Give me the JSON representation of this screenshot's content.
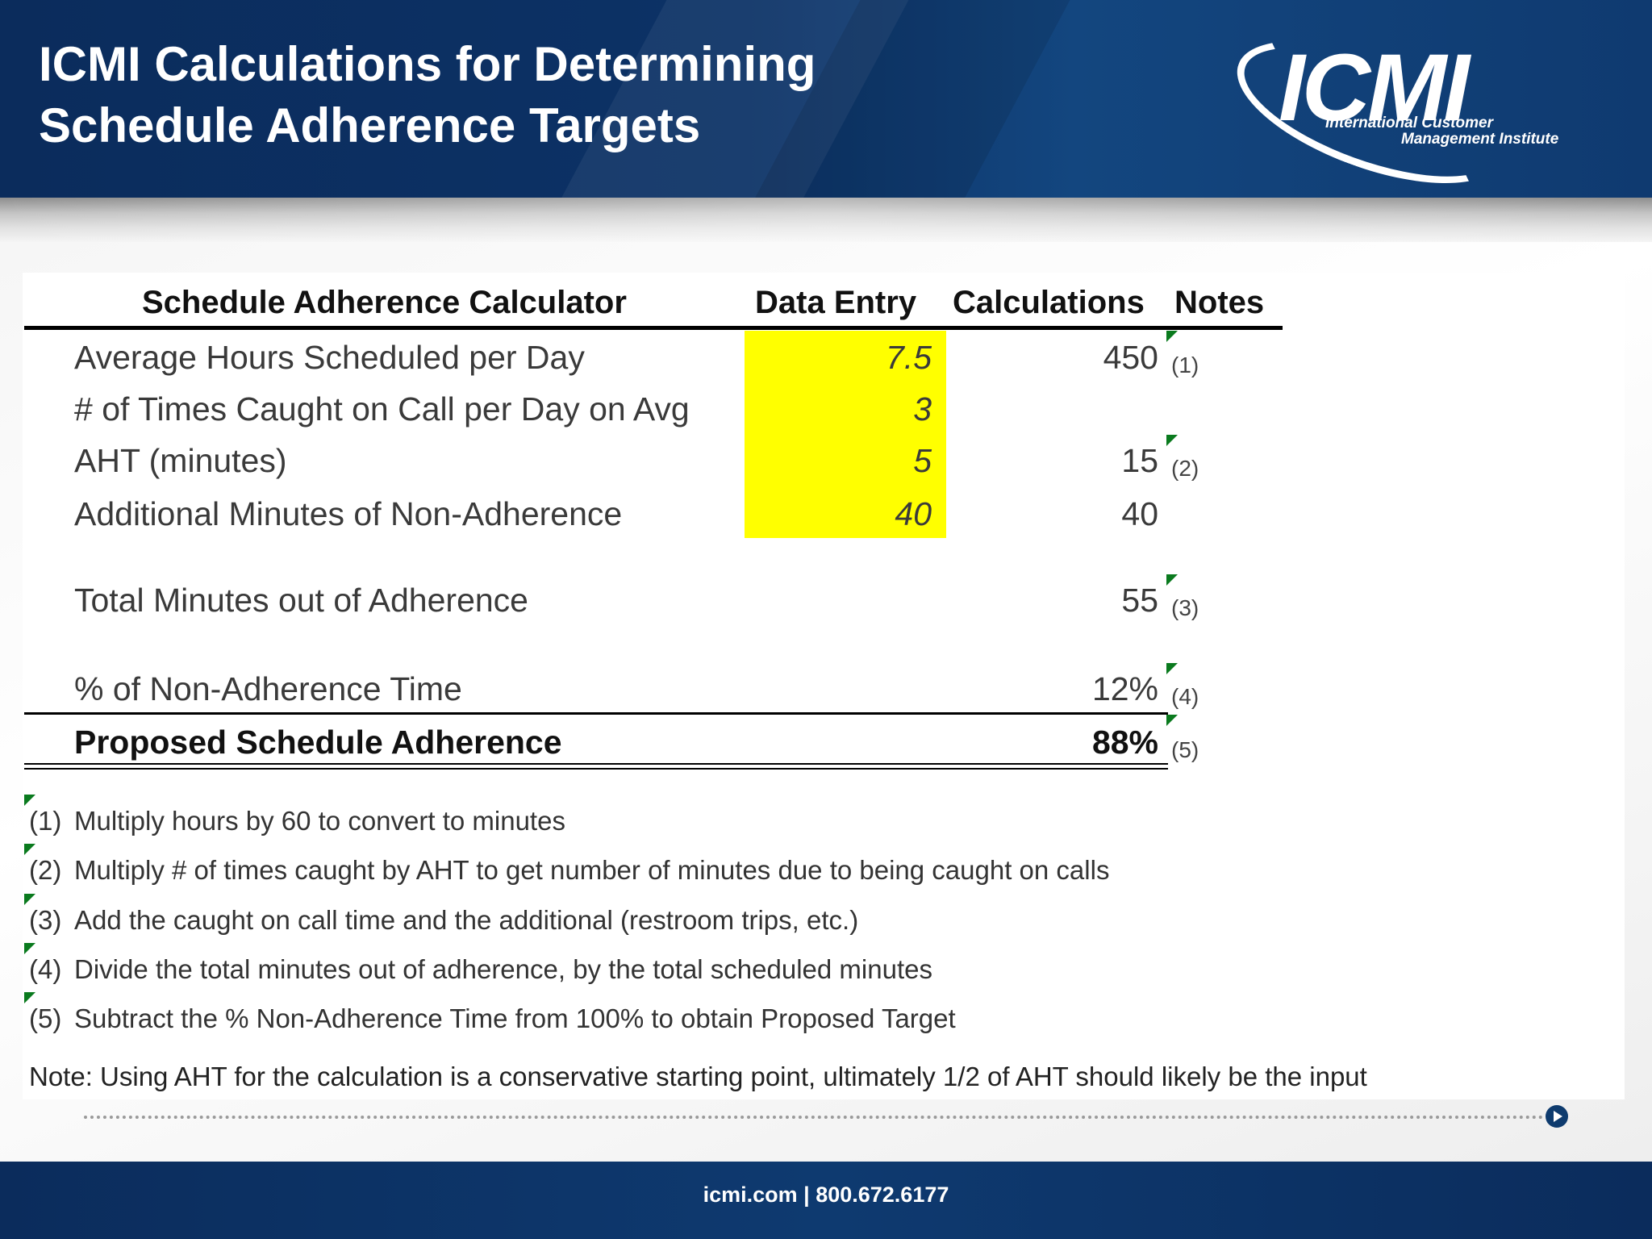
{
  "header": {
    "title_line1": "ICMI Calculations for Determining",
    "title_line2": "Schedule Adherence Targets",
    "logo_word": "ICMI",
    "logo_sub1": "International Customer",
    "logo_sub2": "Management Institute"
  },
  "table": {
    "col_headers": {
      "calculator": "Schedule Adherence Calculator",
      "data_entry": "Data Entry",
      "calculations": "Calculations",
      "notes": "Notes"
    },
    "rows": [
      {
        "label": "Average Hours Scheduled per Day",
        "entry": "7.5",
        "calc": "450",
        "note": "(1)"
      },
      {
        "label": "# of Times Caught on Call per Day on Avg",
        "entry": "3",
        "calc": "",
        "note": ""
      },
      {
        "label": "AHT (minutes)",
        "entry": "5",
        "calc": "15",
        "note": "(2)"
      },
      {
        "label": "Additional Minutes of Non-Adherence",
        "entry": "40",
        "calc": "40",
        "note": ""
      }
    ],
    "total_row": {
      "label": "Total Minutes out of Adherence",
      "calc": "55",
      "note": "(3)"
    },
    "percent_row": {
      "label": "% of Non-Adherence Time",
      "calc": "12%",
      "note": "(4)"
    },
    "proposed_row": {
      "label": "Proposed Schedule Adherence",
      "calc": "88%",
      "note": "(5)"
    }
  },
  "footnotes": [
    {
      "num": "(1)",
      "text": "Multiply hours by 60 to convert to minutes"
    },
    {
      "num": "(2)",
      "text": "Multiply # of times caught by AHT to get number of minutes due to being caught on calls"
    },
    {
      "num": "(3)",
      "text": "Add the caught on call time and the additional (restroom trips, etc.)"
    },
    {
      "num": "(4)",
      "text": "Divide the total minutes out of adherence, by the total scheduled minutes"
    },
    {
      "num": "(5)",
      "text": "Subtract the % Non-Adherence Time from 100% to obtain Proposed Target"
    }
  ],
  "note": "Note: Using AHT for the calculation is a conservative starting point, ultimately 1/2 of AHT should likely be the input",
  "footer": {
    "text": "icmi.com  |  800.672.6177"
  },
  "colors": {
    "navy": "#0c3266",
    "highlight": "#ffff00",
    "comment_flag": "#0a7a1e"
  },
  "icons": [
    "play-icon",
    "icmi-logo"
  ]
}
